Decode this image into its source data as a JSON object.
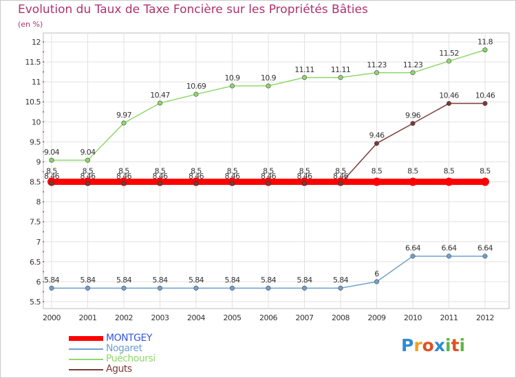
{
  "title": "Evolution du Taux de Taxe Foncière sur les Propriétés Bâties",
  "unit_label": "(en %)",
  "logo": {
    "text": "Proxiti",
    "letters": [
      "P",
      "r",
      "o",
      "x",
      "i",
      "t",
      "i"
    ],
    "colors": [
      "#2e8bd0",
      "#f0a020",
      "#e05020",
      "#2e8bd0",
      "#58b848",
      "#e05020",
      "#58b848"
    ]
  },
  "chart_data": {
    "type": "line",
    "title": "Evolution du Taux de Taxe Foncière sur les Propriétés Bâties",
    "ylabel": "(en %)",
    "xlabel": "",
    "x": [
      "2000",
      "2001",
      "2002",
      "2003",
      "2004",
      "2005",
      "2006",
      "2007",
      "2008",
      "2009",
      "2010",
      "2011",
      "2012"
    ],
    "ylim": [
      5.5,
      12
    ],
    "yticks": [
      "5.5",
      "6",
      "6.5",
      "7",
      "7.5",
      "8",
      "8.5",
      "9",
      "9.5",
      "10",
      "10.5",
      "11",
      "11.5",
      "12"
    ],
    "grid": true,
    "legend_position": "bottom-left",
    "series": [
      {
        "name": "MONTGEY",
        "color": "#ff0000",
        "values": [
          8.5,
          8.5,
          8.5,
          8.5,
          8.5,
          8.5,
          8.5,
          8.5,
          8.5,
          8.5,
          8.5,
          8.5,
          8.5
        ],
        "labels": [
          "8.5",
          "8.5",
          "8.5",
          "8.5",
          "8.5",
          "8.5",
          "8.5",
          "8.5",
          "8.5",
          "8.5",
          "8.5",
          "8.5",
          "8.5"
        ]
      },
      {
        "name": "Nogaret",
        "color": "#6fa0d0",
        "values": [
          5.84,
          5.84,
          5.84,
          5.84,
          5.84,
          5.84,
          5.84,
          5.84,
          5.84,
          6,
          6.64,
          6.64,
          6.64
        ],
        "labels": [
          "5.84",
          "5.84",
          "5.84",
          "5.84",
          "5.84",
          "5.84",
          "5.84",
          "5.84",
          "5.84",
          "6",
          "6.64",
          "6.64",
          "6.64"
        ]
      },
      {
        "name": "Puéchoursi",
        "color": "#8ed86a",
        "values": [
          9.04,
          9.04,
          9.97,
          10.47,
          10.69,
          10.9,
          10.9,
          11.11,
          11.11,
          11.23,
          11.23,
          11.52,
          11.8
        ],
        "labels": [
          "9.04",
          "9.04",
          "9.97",
          "10.47",
          "10.69",
          "10.9",
          "10.9",
          "11.11",
          "11.11",
          "11.23",
          "11.23",
          "11.52",
          "11.8"
        ]
      },
      {
        "name": "Aguts",
        "color": "#7a3a3a",
        "values": [
          8.46,
          8.46,
          8.46,
          8.46,
          8.46,
          8.46,
          8.46,
          8.46,
          8.46,
          9.46,
          9.96,
          10.46,
          10.46
        ],
        "labels": [
          "8.46",
          "8.46",
          "8.46",
          "8.46",
          "8.46",
          "8.46",
          "8.46",
          "8.46",
          "8.46",
          "9.46",
          "9.96",
          "10.46",
          "10.46"
        ]
      }
    ]
  }
}
